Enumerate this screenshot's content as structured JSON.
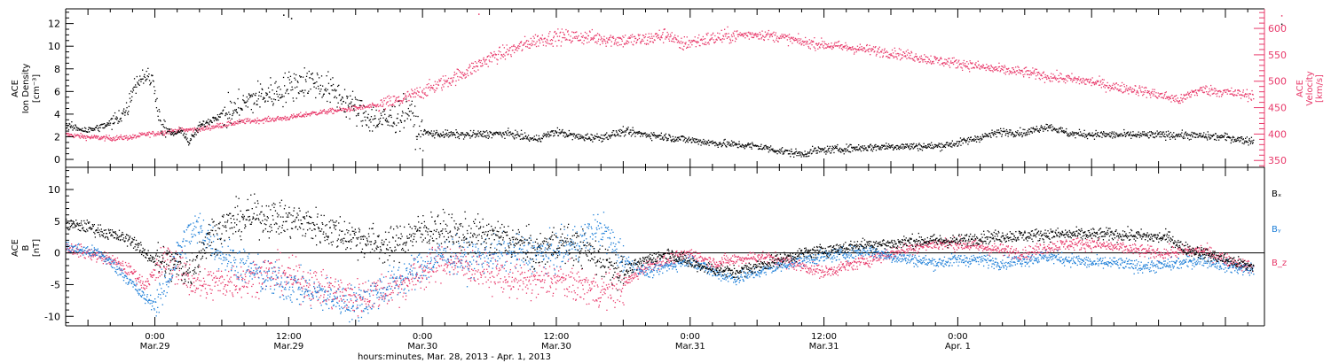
{
  "chart_data": [
    {
      "type": "scatter",
      "panel": "top",
      "left_ylabel_lines": [
        "ACE",
        "Ion Density",
        "[cm⁻³]"
      ],
      "right_ylabel_lines": [
        "ACE",
        "Velocity",
        "[km/s]"
      ],
      "ylim_left": [
        -0.7,
        13.3
      ],
      "ylim_right": [
        337,
        637
      ],
      "yticks_left": [
        0,
        2,
        4,
        6,
        8,
        10,
        12
      ],
      "yticks_right": [
        350,
        400,
        450,
        500,
        550,
        600
      ],
      "grid": false,
      "colors": {
        "density": "#000000",
        "velocity": "#e8396a"
      },
      "density_anchors": [
        [
          0,
          3.0
        ],
        [
          2,
          2.6
        ],
        [
          4,
          3.2
        ],
        [
          5.5,
          4.5
        ],
        [
          6,
          6.5
        ],
        [
          7,
          7.5
        ],
        [
          7.8,
          7
        ],
        [
          8.5,
          3
        ],
        [
          9.5,
          2.3
        ],
        [
          10.5,
          2.5
        ],
        [
          11,
          1.5
        ],
        [
          12,
          3
        ],
        [
          13.5,
          3.8
        ],
        [
          15,
          4.3
        ],
        [
          16,
          5
        ],
        [
          17,
          5.5
        ],
        [
          18,
          5.8
        ],
        [
          19,
          6
        ],
        [
          20,
          6.5
        ],
        [
          21,
          6.8
        ],
        [
          22,
          7
        ],
        [
          23,
          6.5
        ],
        [
          24,
          6
        ],
        [
          25,
          5.2
        ],
        [
          26,
          4.5
        ],
        [
          27,
          3.8
        ],
        [
          28,
          3.5
        ],
        [
          29,
          3.5
        ],
        [
          30,
          4
        ],
        [
          30.8,
          4.5
        ],
        [
          31.5,
          2.5
        ],
        [
          33,
          2.3
        ],
        [
          36,
          2.2
        ],
        [
          38,
          2.3
        ],
        [
          40,
          2.3
        ],
        [
          42,
          1.8
        ],
        [
          44,
          2.5
        ],
        [
          46,
          2.0
        ],
        [
          48,
          2.0
        ],
        [
          50,
          2.5
        ],
        [
          54,
          2.0
        ],
        [
          58,
          1.5
        ],
        [
          62,
          1.2
        ],
        [
          64,
          0.8
        ],
        [
          66,
          0.5
        ],
        [
          67,
          0.8
        ],
        [
          70,
          1.0
        ],
        [
          74,
          1.2
        ],
        [
          78,
          1.2
        ],
        [
          80,
          1.5
        ],
        [
          84,
          2.5
        ],
        [
          86,
          2.4
        ],
        [
          88,
          3
        ],
        [
          90,
          2.3
        ],
        [
          94,
          2.2
        ],
        [
          100,
          2.2
        ],
        [
          104,
          2.0
        ],
        [
          106,
          1.7
        ]
      ],
      "velocity_anchors": [
        [
          0,
          400
        ],
        [
          2,
          395
        ],
        [
          4,
          393
        ],
        [
          6,
          395
        ],
        [
          7,
          400
        ],
        [
          8,
          402
        ],
        [
          10,
          408
        ],
        [
          12,
          410
        ],
        [
          14,
          418
        ],
        [
          16,
          425
        ],
        [
          18,
          428
        ],
        [
          20,
          432
        ],
        [
          22,
          440
        ],
        [
          24,
          445
        ],
        [
          26,
          450
        ],
        [
          28,
          455
        ],
        [
          30,
          465
        ],
        [
          32,
          482
        ],
        [
          34,
          500
        ],
        [
          36,
          520
        ],
        [
          38,
          545
        ],
        [
          40,
          560
        ],
        [
          42,
          578
        ],
        [
          44,
          585
        ],
        [
          46,
          585
        ],
        [
          48,
          582
        ],
        [
          50,
          578
        ],
        [
          52,
          580
        ],
        [
          54,
          590
        ],
        [
          55,
          570
        ],
        [
          56,
          575
        ],
        [
          58,
          582
        ],
        [
          60,
          588
        ],
        [
          62,
          590
        ],
        [
          64,
          585
        ],
        [
          66,
          575
        ],
        [
          68,
          570
        ],
        [
          70,
          565
        ],
        [
          72,
          560
        ],
        [
          74,
          555
        ],
        [
          76,
          548
        ],
        [
          78,
          540
        ],
        [
          80,
          535
        ],
        [
          82,
          528
        ],
        [
          84,
          522
        ],
        [
          86,
          518
        ],
        [
          88,
          510
        ],
        [
          90,
          505
        ],
        [
          92,
          500
        ],
        [
          94,
          490
        ],
        [
          96,
          485
        ],
        [
          98,
          475
        ],
        [
          99,
          470
        ],
        [
          100,
          465
        ],
        [
          101,
          480
        ],
        [
          102,
          485
        ],
        [
          104,
          480
        ],
        [
          106,
          475
        ]
      ],
      "density_spikes": [
        [
          19.5,
          12.8
        ],
        [
          20.2,
          12.5
        ],
        [
          109,
          12
        ]
      ],
      "velocity_spikes": [
        [
          37,
          628
        ],
        [
          109,
          625
        ]
      ]
    },
    {
      "type": "scatter",
      "panel": "bottom",
      "left_ylabel_lines": [
        "ACE",
        "B",
        "[nT]"
      ],
      "ylim": [
        -11.5,
        13.5
      ],
      "yticks": [
        -10,
        -5,
        0,
        5,
        10
      ],
      "grid": false,
      "series": [
        {
          "name": "Bₓ",
          "color": "#000000",
          "anchors": [
            [
              0,
              4.5
            ],
            [
              2,
              4.2
            ],
            [
              4,
              3
            ],
            [
              6,
              2
            ],
            [
              7,
              0
            ],
            [
              8,
              -1
            ],
            [
              9,
              -1.5
            ],
            [
              10,
              -2
            ],
            [
              11,
              -3
            ],
            [
              12,
              0
            ],
            [
              13,
              3
            ],
            [
              15,
              5
            ],
            [
              17,
              6
            ],
            [
              19,
              5.5
            ],
            [
              21,
              5
            ],
            [
              23,
              4
            ],
            [
              25,
              3
            ],
            [
              27,
              2
            ],
            [
              29,
              1
            ],
            [
              31,
              3
            ],
            [
              33,
              4
            ],
            [
              35,
              3
            ],
            [
              37,
              3
            ],
            [
              39,
              2.5
            ],
            [
              41,
              1.5
            ],
            [
              42,
              0
            ],
            [
              44,
              2
            ],
            [
              46,
              1
            ],
            [
              48,
              -1
            ],
            [
              50,
              -3
            ],
            [
              52,
              -1
            ],
            [
              54,
              0
            ],
            [
              56,
              -1.5
            ],
            [
              58,
              -2.5
            ],
            [
              60,
              -3
            ],
            [
              62,
              -2
            ],
            [
              64,
              -1
            ],
            [
              66,
              0
            ],
            [
              68,
              0.5
            ],
            [
              70,
              1
            ],
            [
              72,
              1.5
            ],
            [
              74,
              1.5
            ],
            [
              76,
              2
            ],
            [
              78,
              2
            ],
            [
              80,
              2
            ],
            [
              82,
              2.5
            ],
            [
              84,
              2.7
            ],
            [
              86,
              2.8
            ],
            [
              88,
              3
            ],
            [
              90,
              3
            ],
            [
              92,
              3
            ],
            [
              94,
              3
            ],
            [
              96,
              2.8
            ],
            [
              98,
              2.5
            ],
            [
              99,
              2.5
            ],
            [
              100,
              1
            ],
            [
              102,
              0
            ],
            [
              104,
              -1
            ],
            [
              106,
              -2
            ]
          ]
        },
        {
          "name": "Bᵧ",
          "color": "#1e7fd8",
          "anchors": [
            [
              0,
              1
            ],
            [
              3,
              0
            ],
            [
              5,
              -3
            ],
            [
              7,
              -7
            ],
            [
              8,
              -8
            ],
            [
              9,
              -5
            ],
            [
              10,
              0
            ],
            [
              11,
              3
            ],
            [
              12,
              4
            ],
            [
              14,
              0
            ],
            [
              16,
              -2
            ],
            [
              18,
              -4
            ],
            [
              20,
              -5
            ],
            [
              22,
              -6
            ],
            [
              24,
              -7
            ],
            [
              26,
              -8
            ],
            [
              28,
              -6
            ],
            [
              30,
              -4
            ],
            [
              32,
              -2
            ],
            [
              34,
              0
            ],
            [
              36,
              -1
            ],
            [
              38,
              0
            ],
            [
              40,
              0
            ],
            [
              42,
              0
            ],
            [
              44,
              0
            ],
            [
              46,
              2
            ],
            [
              48,
              4
            ],
            [
              50,
              -1
            ],
            [
              52,
              -3
            ],
            [
              54,
              -2
            ],
            [
              56,
              -1
            ],
            [
              58,
              -3
            ],
            [
              60,
              -4
            ],
            [
              62,
              -3
            ],
            [
              64,
              -2
            ],
            [
              66,
              -1
            ],
            [
              68,
              -0.5
            ],
            [
              70,
              0
            ],
            [
              72,
              0.5
            ],
            [
              74,
              -0.5
            ],
            [
              76,
              -1
            ],
            [
              78,
              -1.5
            ],
            [
              80,
              -1
            ],
            [
              82,
              -1
            ],
            [
              84,
              -1.5
            ],
            [
              86,
              -1
            ],
            [
              88,
              -0.5
            ],
            [
              90,
              -1
            ],
            [
              92,
              -1.5
            ],
            [
              94,
              -1.5
            ],
            [
              96,
              -2
            ],
            [
              98,
              -2
            ],
            [
              100,
              -1.5
            ],
            [
              102,
              -1
            ],
            [
              104,
              -2
            ],
            [
              106,
              -2.5
            ]
          ]
        },
        {
          "name": "B_z",
          "color": "#e8396a",
          "anchors": [
            [
              0,
              1
            ],
            [
              2,
              0
            ],
            [
              4,
              -1
            ],
            [
              6,
              -3
            ],
            [
              7,
              -5
            ],
            [
              8,
              -3
            ],
            [
              9,
              -1
            ],
            [
              10,
              -2
            ],
            [
              11,
              -4
            ],
            [
              12,
              -5
            ],
            [
              14,
              -4.5
            ],
            [
              16,
              -4
            ],
            [
              18,
              -3
            ],
            [
              20,
              -3.5
            ],
            [
              22,
              -5
            ],
            [
              24,
              -6
            ],
            [
              26,
              -7
            ],
            [
              28,
              -6
            ],
            [
              30,
              -5
            ],
            [
              32,
              -3
            ],
            [
              34,
              -1
            ],
            [
              36,
              -2
            ],
            [
              38,
              -3
            ],
            [
              40,
              -4
            ],
            [
              42,
              -4.5
            ],
            [
              44,
              -4
            ],
            [
              46,
              -5
            ],
            [
              48,
              -6
            ],
            [
              50,
              -5
            ],
            [
              52,
              -2
            ],
            [
              54,
              -1
            ],
            [
              56,
              0
            ],
            [
              58,
              -1.5
            ],
            [
              60,
              -1
            ],
            [
              62,
              -0.5
            ],
            [
              64,
              -1
            ],
            [
              66,
              -2
            ],
            [
              68,
              -3
            ],
            [
              70,
              -2
            ],
            [
              72,
              -1
            ],
            [
              74,
              0
            ],
            [
              76,
              1
            ],
            [
              78,
              1.5
            ],
            [
              80,
              1.5
            ],
            [
              82,
              1
            ],
            [
              84,
              0.5
            ],
            [
              86,
              0
            ],
            [
              88,
              1
            ],
            [
              90,
              1.5
            ],
            [
              92,
              1.5
            ],
            [
              94,
              1
            ],
            [
              96,
              0.5
            ],
            [
              98,
              0
            ],
            [
              100,
              0.3
            ],
            [
              102,
              0.5
            ],
            [
              104,
              -1
            ],
            [
              106,
              -2
            ]
          ]
        }
      ],
      "legend": "right"
    }
  ],
  "x_axis": {
    "range_hours": [
      0,
      107.5
    ],
    "ticks": [
      {
        "hour": 8,
        "time": "0:00",
        "date": "Mar.29"
      },
      {
        "hour": 20,
        "time": "12:00",
        "date": "Mar.29"
      },
      {
        "hour": 32,
        "time": "0:00",
        "date": "Mar.30"
      },
      {
        "hour": 44,
        "time": "12:00",
        "date": "Mar.30"
      },
      {
        "hour": 56,
        "time": "0:00",
        "date": "Mar.31"
      },
      {
        "hour": 68,
        "time": "12:00",
        "date": "Mar.31"
      },
      {
        "hour": 80,
        "time": "0:00",
        "date": "Apr. 1"
      }
    ],
    "label": "hours:minutes, Mar. 28, 2013 - Apr.  1, 2013"
  }
}
